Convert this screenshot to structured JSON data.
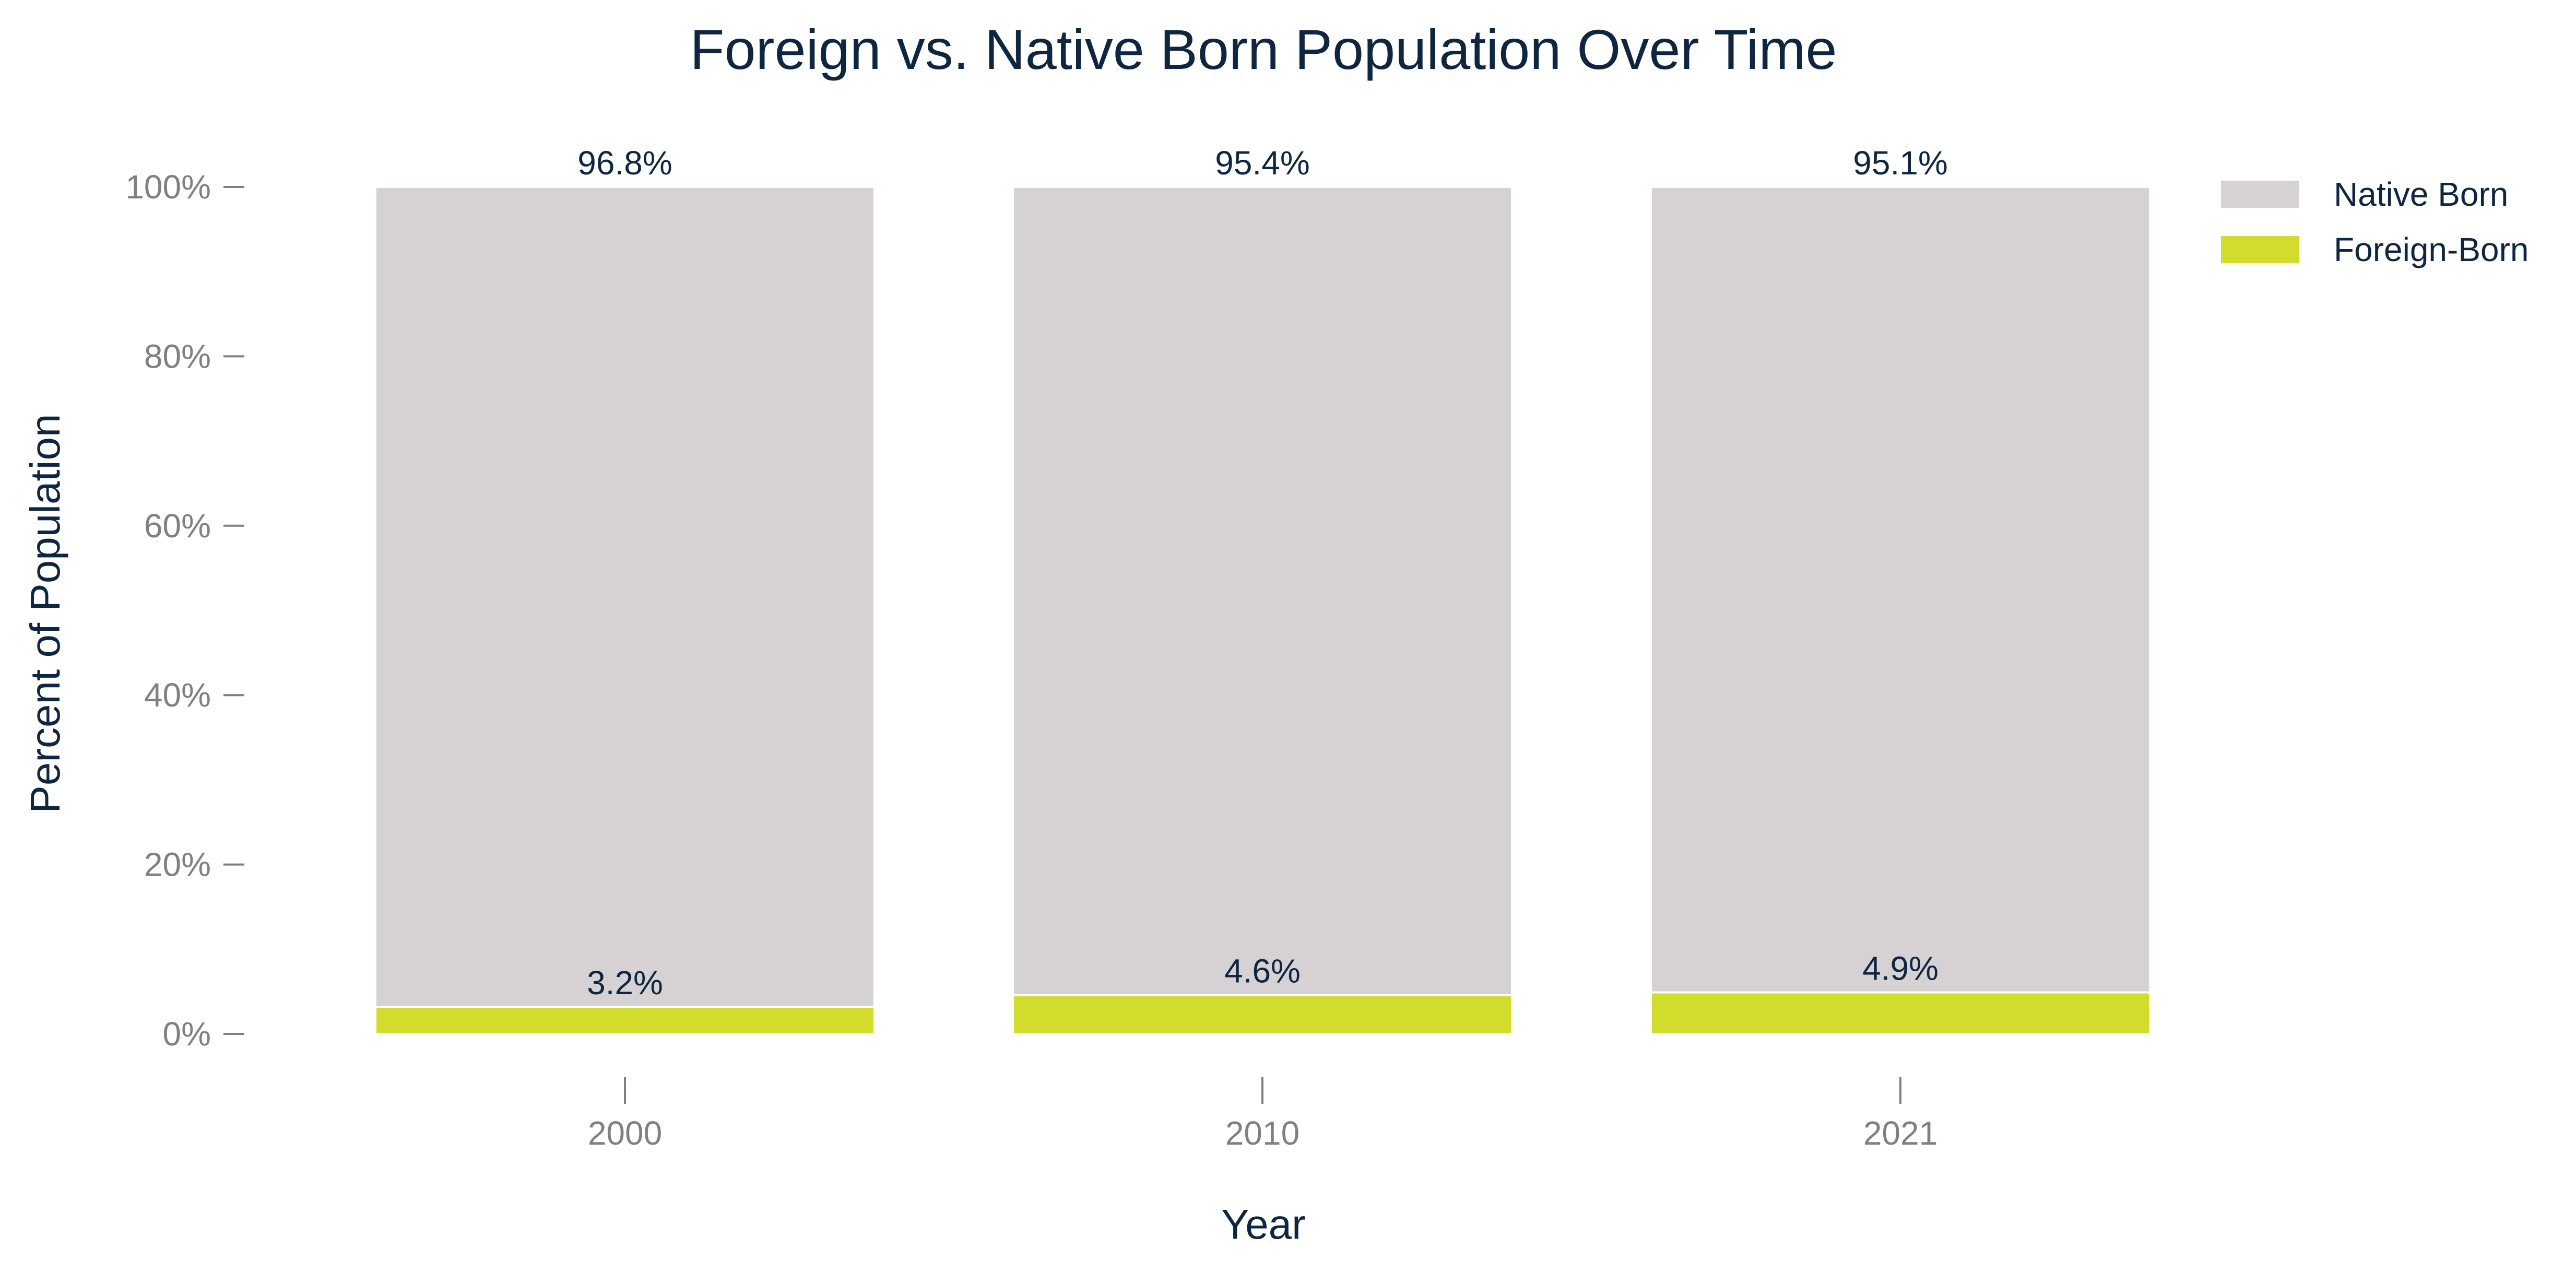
{
  "chart_data": {
    "type": "bar",
    "stacked": true,
    "title": "Foreign vs. Native Born Population Over Time",
    "xlabel": "Year",
    "ylabel": "Percent of Population",
    "categories": [
      "2000",
      "2010",
      "2021"
    ],
    "series": [
      {
        "name": "Foreign-Born",
        "values": [
          3.2,
          4.6,
          4.9
        ],
        "labels": [
          "3.2%",
          "4.6%",
          "4.9%"
        ],
        "color": "#d1dc2c"
      },
      {
        "name": "Native Born",
        "values": [
          96.8,
          95.4,
          95.1
        ],
        "labels": [
          "96.8%",
          "95.4%",
          "95.1%"
        ],
        "color": "#d6d1d3"
      }
    ],
    "legend_order": [
      "Native Born",
      "Foreign-Born"
    ],
    "ylim": [
      0,
      100
    ],
    "yticks": [
      0,
      20,
      40,
      60,
      80,
      100
    ],
    "ytick_labels": [
      "0%",
      "20%",
      "40%",
      "60%",
      "80%",
      "100%"
    ],
    "grid": false,
    "legend_position": "top-right",
    "colors": {
      "title_text": "#0f2640",
      "tick_text": "#7f7f86",
      "data_text": "#0f2640"
    }
  }
}
